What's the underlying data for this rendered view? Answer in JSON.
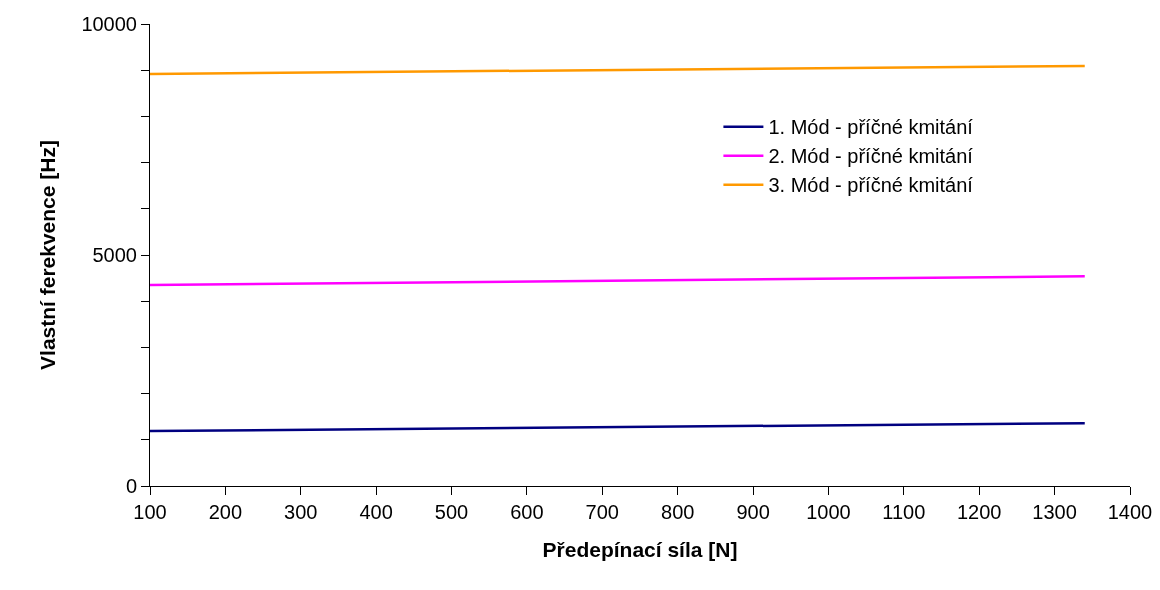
{
  "chart_data": {
    "type": "line",
    "xlabel": "Předepínací síla [N]",
    "ylabel": "Vlastní ferekvence [Hz]",
    "x": [
      100,
      1340
    ],
    "series": [
      {
        "name": "1. Mód - příčné kmitání",
        "color": "#000080",
        "values": [
          1190,
          1360
        ]
      },
      {
        "name": "2. Mód - příčné kmitání",
        "color": "#ff00ff",
        "values": [
          4350,
          4540
        ]
      },
      {
        "name": "3. Mód - příčné kmitání",
        "color": "#ff9900",
        "values": [
          8920,
          9090
        ]
      }
    ],
    "xlim": [
      100,
      1400
    ],
    "xticks": [
      100,
      200,
      300,
      400,
      500,
      600,
      700,
      800,
      900,
      1000,
      1100,
      1200,
      1300,
      1400
    ],
    "ylim": [
      0,
      10000
    ],
    "yticks": [
      0,
      {
        "value": 1000,
        "label": null
      },
      {
        "value": 2000,
        "label": null
      },
      {
        "value": 3000,
        "label": null
      },
      {
        "value": 4000,
        "label": null
      },
      5000,
      {
        "value": 6000,
        "label": null
      },
      {
        "value": 7000,
        "label": null
      },
      {
        "value": 8000,
        "label": null
      },
      {
        "value": 9000,
        "label": null
      },
      10000
    ],
    "grid": false,
    "legend": "right",
    "marker": "none",
    "line_style": "solid"
  }
}
